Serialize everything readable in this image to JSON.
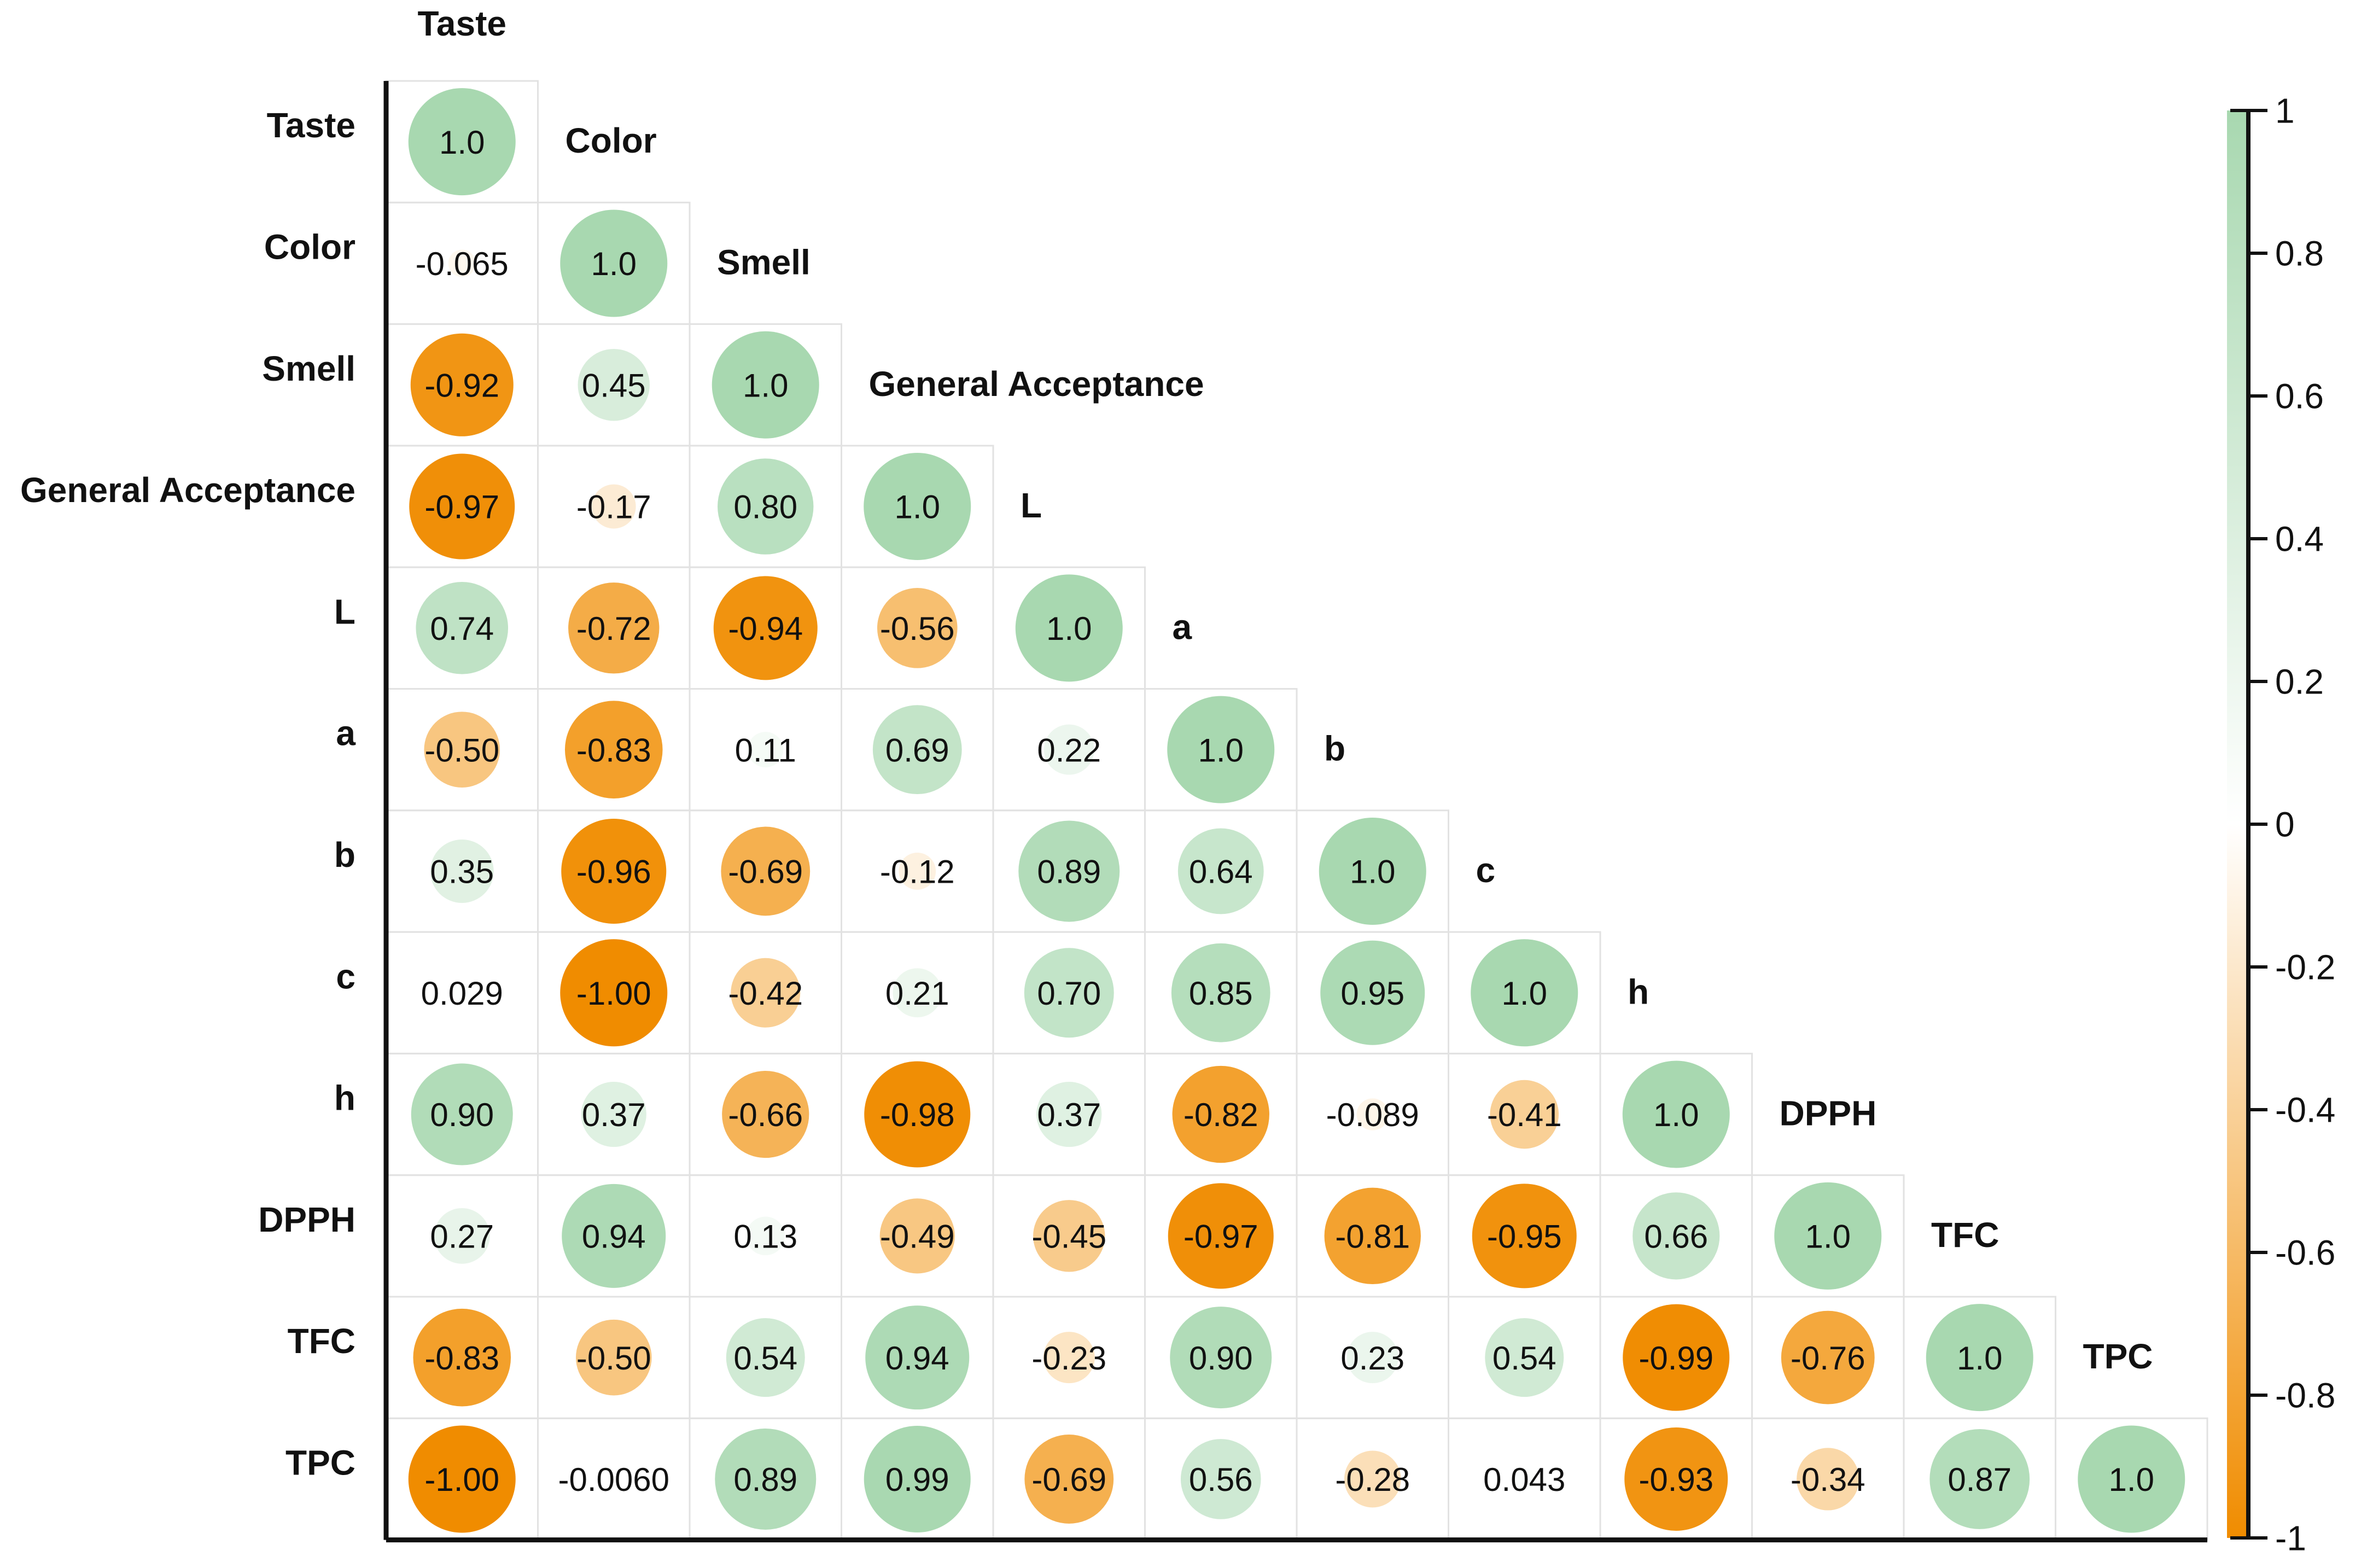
{
  "chart_data": {
    "type": "heatmap",
    "variables": [
      "Taste",
      "Color",
      "Smell",
      "General Acceptance",
      "L",
      "a",
      "b",
      "c",
      "h",
      "DPPH",
      "TFC",
      "TPC"
    ],
    "matrix": [
      [
        "1.0"
      ],
      [
        "-0.065",
        "1.0"
      ],
      [
        "-0.92",
        "0.45",
        "1.0"
      ],
      [
        "-0.97",
        "-0.17",
        "0.80",
        "1.0"
      ],
      [
        "0.74",
        "-0.72",
        "-0.94",
        "-0.56",
        "1.0"
      ],
      [
        "-0.50",
        "-0.83",
        "0.11",
        "0.69",
        "0.22",
        "1.0"
      ],
      [
        "0.35",
        "-0.96",
        "-0.69",
        "-0.12",
        "0.89",
        "0.64",
        "1.0"
      ],
      [
        "0.029",
        "-1.00",
        "-0.42",
        "0.21",
        "0.70",
        "0.85",
        "0.95",
        "1.0"
      ],
      [
        "0.90",
        "0.37",
        "-0.66",
        "-0.98",
        "0.37",
        "-0.82",
        "-0.089",
        "-0.41",
        "1.0"
      ],
      [
        "0.27",
        "0.94",
        "0.13",
        "-0.49",
        "-0.45",
        "-0.97",
        "-0.81",
        "-0.95",
        "0.66",
        "1.0"
      ],
      [
        "-0.83",
        "-0.50",
        "0.54",
        "0.94",
        "-0.23",
        "0.90",
        "0.23",
        "0.54",
        "-0.99",
        "-0.76",
        "1.0"
      ],
      [
        "-1.00",
        "-0.0060",
        "0.89",
        "0.99",
        "-0.69",
        "0.56",
        "-0.28",
        "0.043",
        "-0.93",
        "-0.34",
        "0.87",
        "1.0"
      ]
    ],
    "colorbar": {
      "ticks": [
        "1",
        "0.8",
        "0.6",
        "0.4",
        "0.2",
        "0",
        "-0.2",
        "-0.4",
        "-0.6",
        "-0.8",
        "-1"
      ],
      "range": [
        -1,
        1
      ],
      "positive_color": "#a8d8b0",
      "zero_color": "#ffffff",
      "negative_color": "#f08c00"
    },
    "grid": true
  }
}
